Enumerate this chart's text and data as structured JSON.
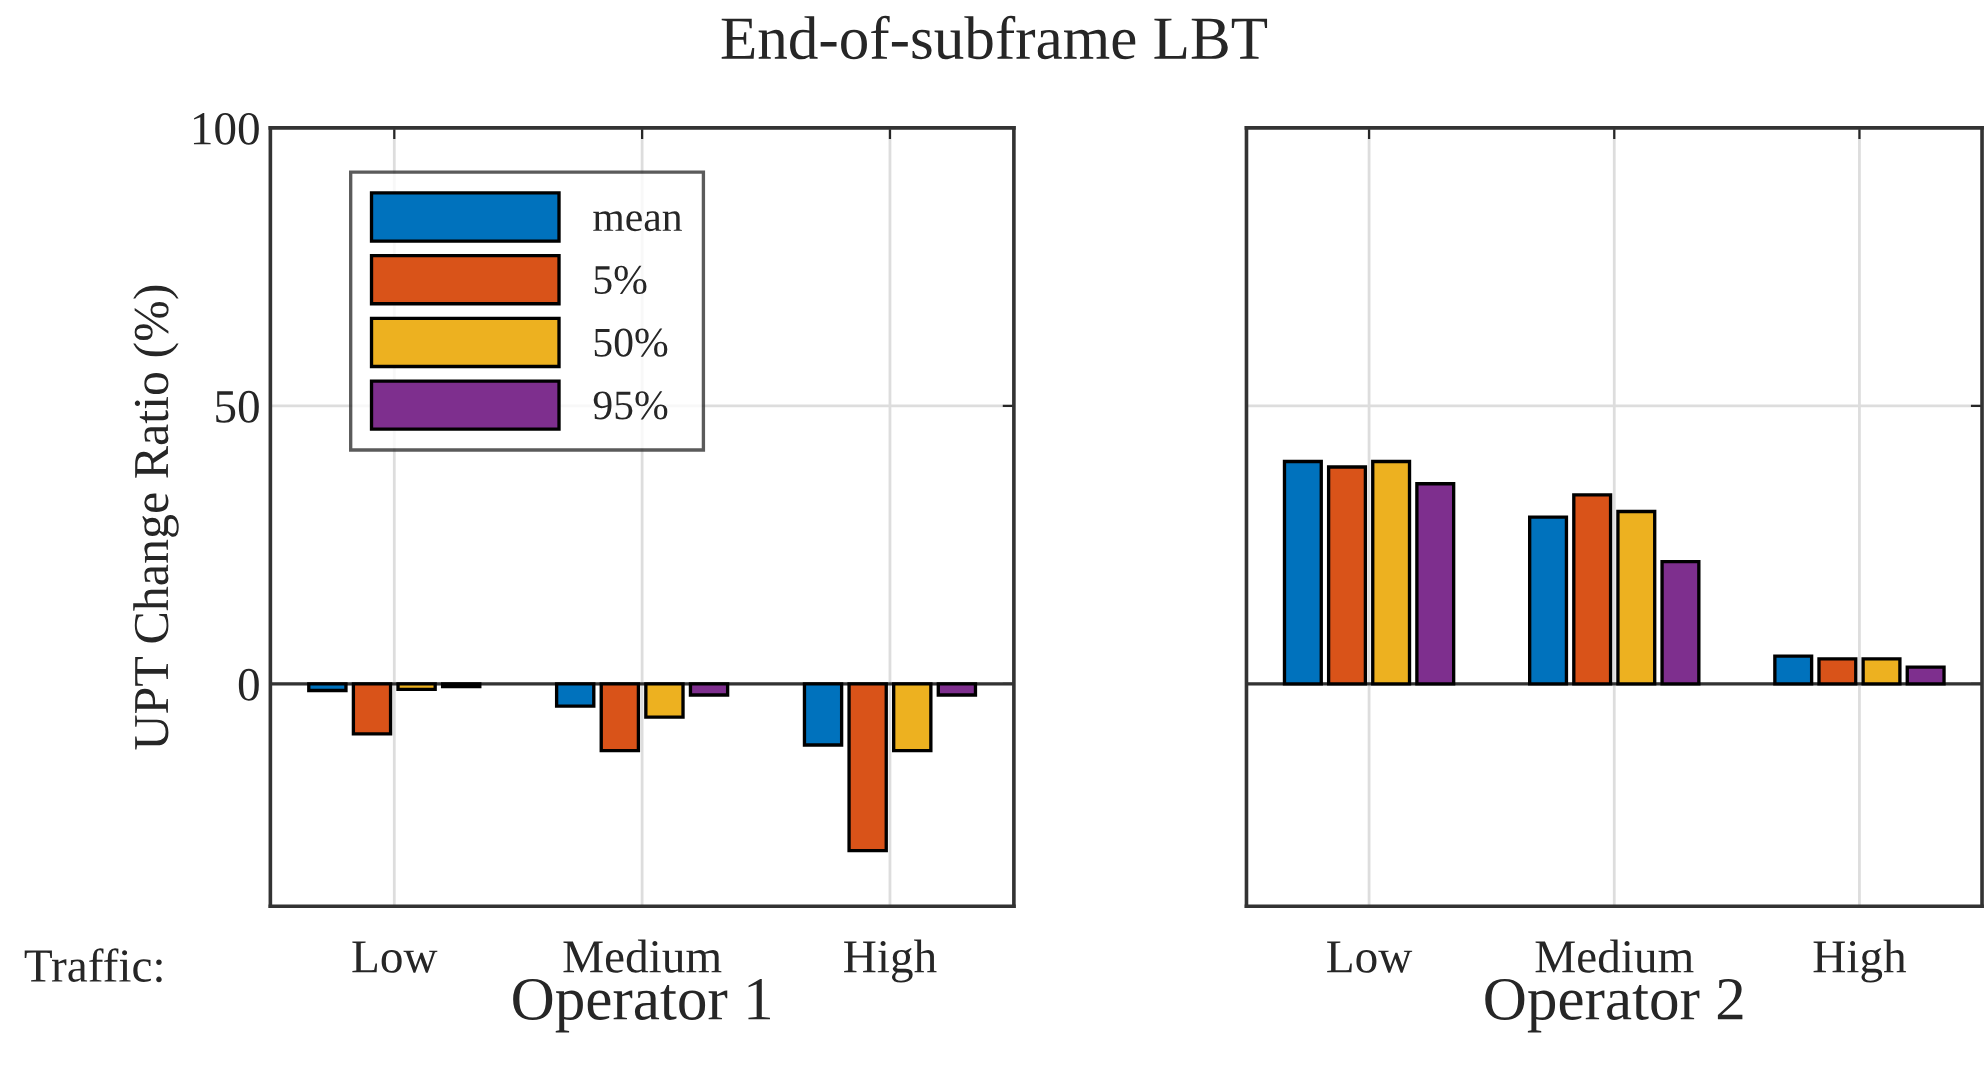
{
  "chart_data": [
    {
      "type": "bar",
      "title": "End-of-subframe LBT",
      "xlabel": "Operator 1",
      "ylabel": "UPT Change Ratio (%)",
      "categories": [
        "Low",
        "Medium",
        "High"
      ],
      "annotations": [
        "Traffic:"
      ],
      "series": [
        {
          "name": "mean",
          "color": "#0072bd",
          "values": [
            -1.2,
            -4,
            -11
          ]
        },
        {
          "name": "5%",
          "color": "#d95319",
          "values": [
            -9,
            -12,
            -30
          ]
        },
        {
          "name": "50%",
          "color": "#edb120",
          "values": [
            -1,
            -6,
            -12
          ]
        },
        {
          "name": "95%",
          "color": "#7e2f8e",
          "values": [
            -0.5,
            -2,
            -2
          ]
        }
      ],
      "ylim": [
        -40,
        100
      ],
      "yticks": [
        0,
        50,
        100
      ],
      "grid": true,
      "legend": "top left"
    },
    {
      "type": "bar",
      "xlabel": "Operator 2",
      "categories": [
        "Low",
        "Medium",
        "High"
      ],
      "series": [
        {
          "color": "#0072bd",
          "values": [
            40,
            30,
            5
          ]
        },
        {
          "color": "#d95319",
          "values": [
            39,
            34,
            4.5
          ]
        },
        {
          "color": "#edb120",
          "values": [
            40,
            31,
            4.5
          ]
        },
        {
          "color": "#7e2f8e",
          "values": [
            36,
            22,
            3
          ]
        }
      ],
      "ylim": [
        -40,
        100
      ],
      "yticks": [
        0,
        50,
        100
      ],
      "grid": true,
      "tick_labels": "x"
    }
  ]
}
